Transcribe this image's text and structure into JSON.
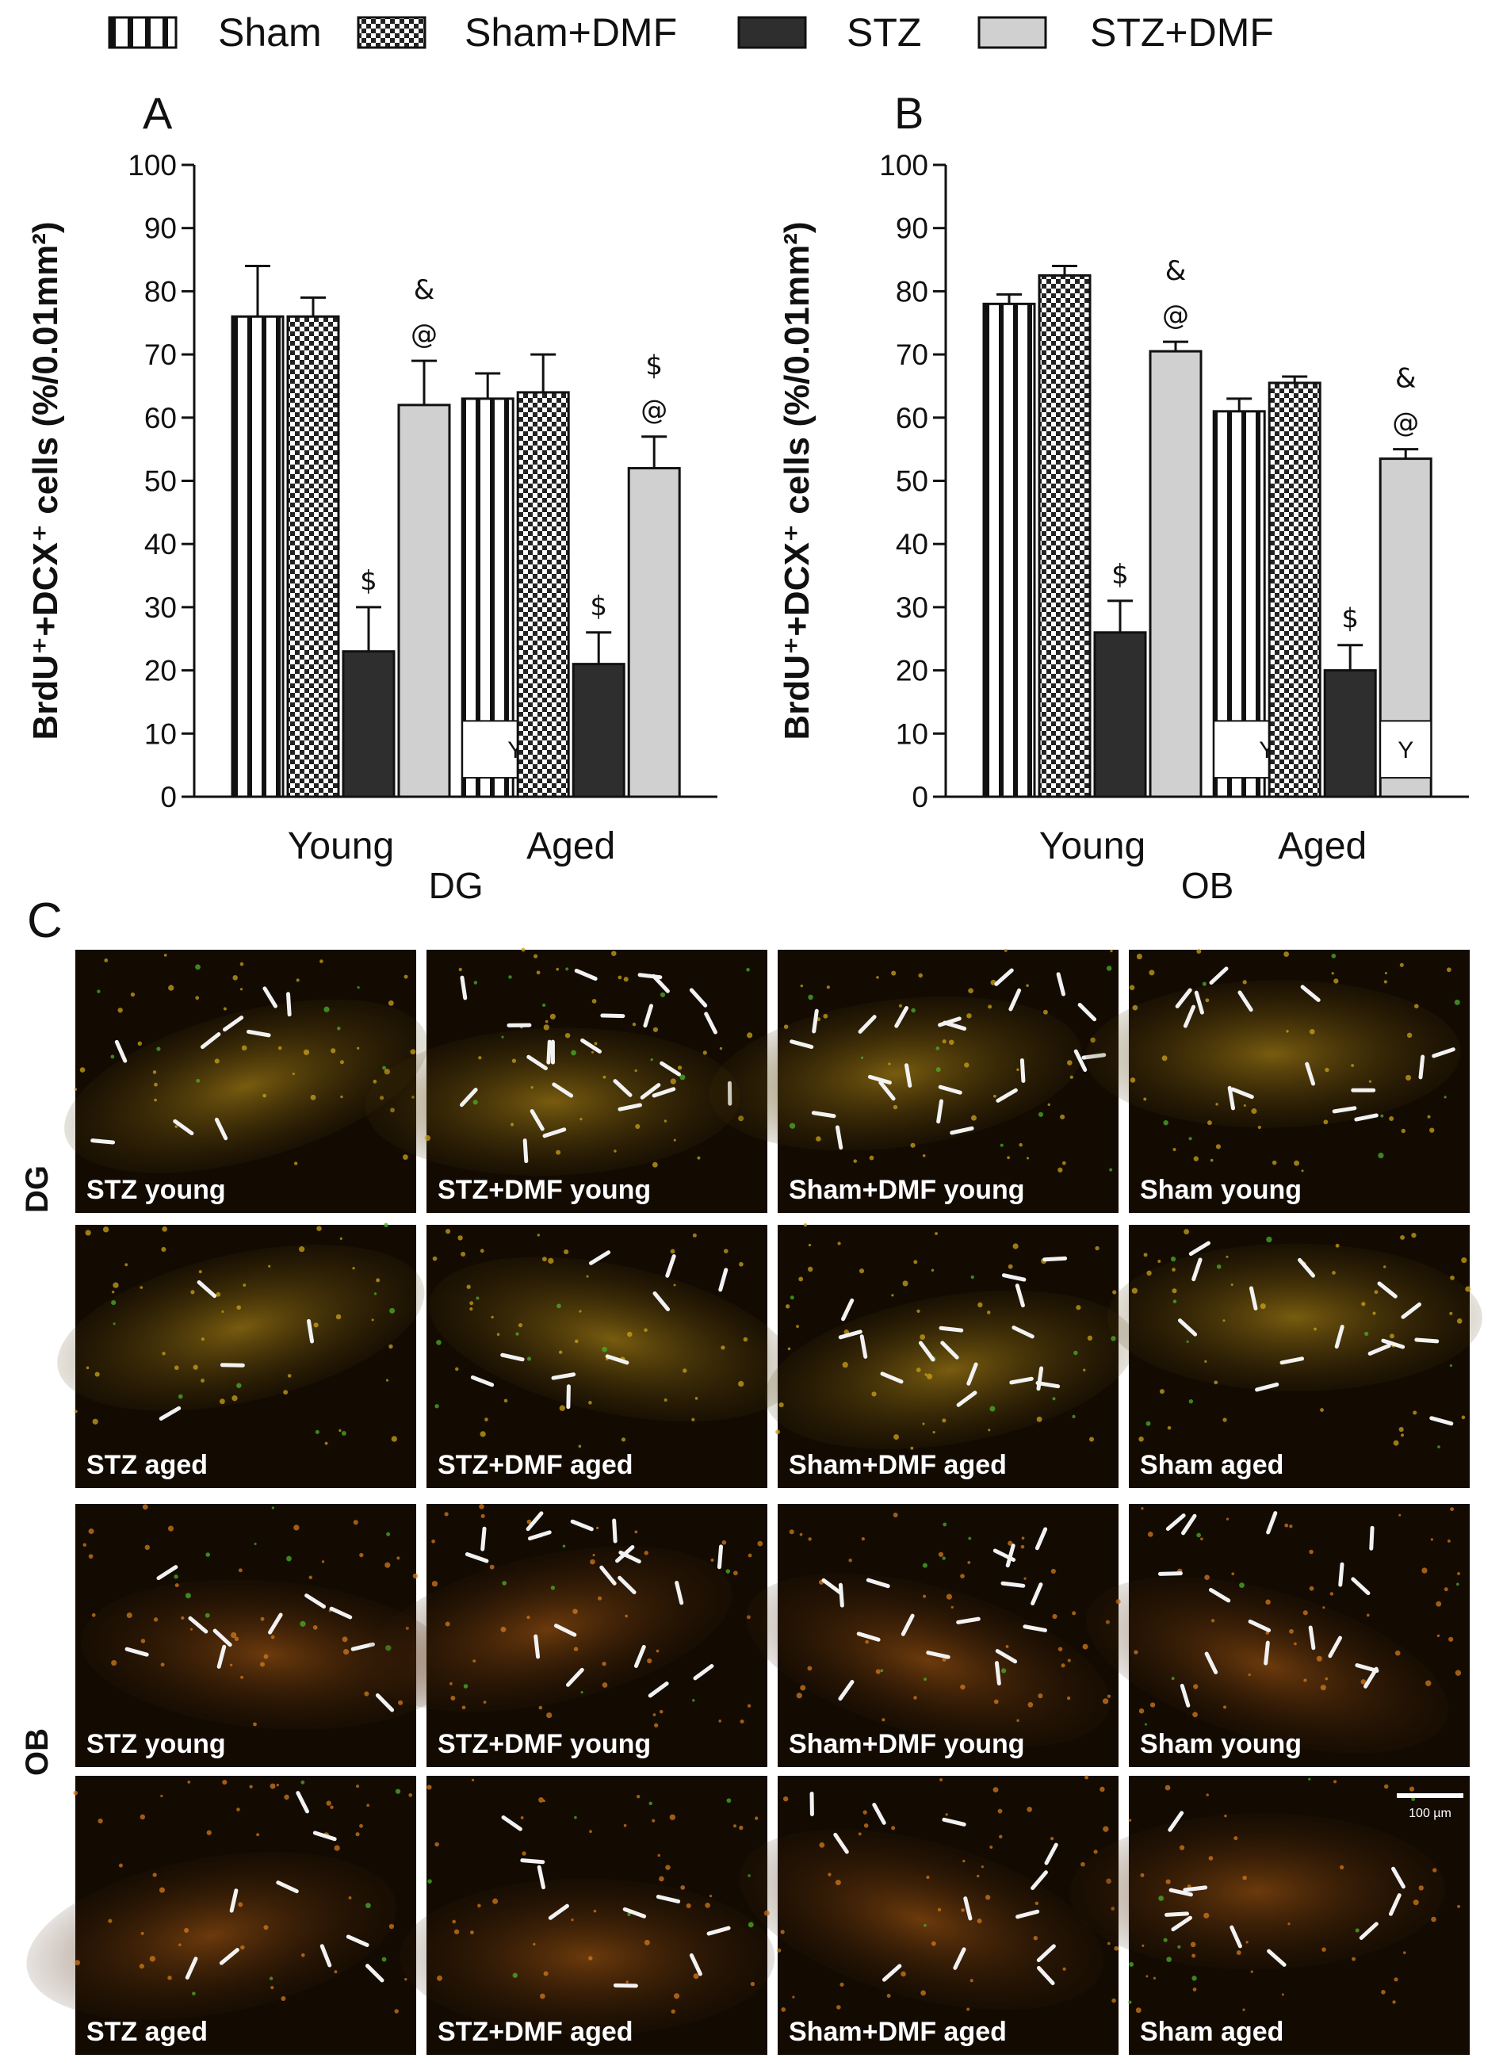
{
  "legend": [
    {
      "label": "Sham",
      "pattern": "vstripe"
    },
    {
      "label": "Sham+DMF",
      "pattern": "check"
    },
    {
      "label": "STZ",
      "pattern": "dark"
    },
    {
      "label": "STZ+DMF",
      "pattern": "light"
    }
  ],
  "colors": {
    "stz": "#2e2e2e",
    "stz_dmf": "#d0d0d0",
    "sham_stripe": "#111111",
    "check": "#222222",
    "micrograph_bg": "#130b02",
    "arrow": "#f2f2f2"
  },
  "chart_data": [
    {
      "type": "bar",
      "panel": "A",
      "title": "",
      "ylabel": "BrdU⁺+DCX⁺ cells (%/0.01mm²)",
      "xlabel": "DG",
      "ylim": [
        0,
        100
      ],
      "yticks": [
        0,
        10,
        20,
        30,
        40,
        50,
        60,
        70,
        80,
        90,
        100
      ],
      "categories": [
        "Young",
        "Aged"
      ],
      "series": [
        {
          "name": "Sham",
          "values": [
            76,
            63
          ],
          "errors": [
            8,
            4
          ],
          "annotations": [
            "",
            ""
          ],
          "inset_labels": [
            "",
            "Y"
          ]
        },
        {
          "name": "Sham+DMF",
          "values": [
            76,
            64
          ],
          "errors": [
            3,
            6
          ],
          "annotations": [
            "",
            ""
          ],
          "inset_labels": [
            "",
            ""
          ]
        },
        {
          "name": "STZ",
          "values": [
            23,
            21
          ],
          "errors": [
            7,
            5
          ],
          "annotations": [
            "$",
            "$"
          ],
          "inset_labels": [
            "",
            ""
          ]
        },
        {
          "name": "STZ+DMF",
          "values": [
            62,
            52
          ],
          "errors": [
            7,
            5
          ],
          "annotations": [
            "& @",
            "$ @"
          ],
          "inset_labels": [
            "",
            ""
          ]
        }
      ]
    },
    {
      "type": "bar",
      "panel": "B",
      "title": "",
      "ylabel": "BrdU⁺+DCX⁺ cells (%/0.01mm²)",
      "xlabel": "OB",
      "ylim": [
        0,
        100
      ],
      "yticks": [
        0,
        10,
        20,
        30,
        40,
        50,
        60,
        70,
        80,
        90,
        100
      ],
      "categories": [
        "Young",
        "Aged"
      ],
      "series": [
        {
          "name": "Sham",
          "values": [
            78,
            61
          ],
          "errors": [
            1.5,
            2
          ],
          "annotations": [
            "",
            ""
          ],
          "inset_labels": [
            "",
            "Y"
          ]
        },
        {
          "name": "Sham+DMF",
          "values": [
            82.5,
            65.5
          ],
          "errors": [
            1.5,
            1
          ],
          "annotations": [
            "",
            ""
          ],
          "inset_labels": [
            "",
            ""
          ]
        },
        {
          "name": "STZ",
          "values": [
            26,
            20
          ],
          "errors": [
            5,
            4
          ],
          "annotations": [
            "$",
            "$"
          ],
          "inset_labels": [
            "",
            ""
          ]
        },
        {
          "name": "STZ+DMF",
          "values": [
            70.5,
            53.5
          ],
          "errors": [
            1.5,
            1.5
          ],
          "annotations": [
            "& @",
            "& @"
          ],
          "inset_labels": [
            "",
            "Y"
          ]
        }
      ]
    }
  ],
  "panel_c": {
    "label": "C",
    "row_labels": [
      "DG",
      "OB"
    ],
    "scale_bar": "100 µm",
    "rows": [
      [
        {
          "label": "STZ young",
          "arrows": 9
        },
        {
          "label": "STZ+DMF young",
          "arrows": 24
        },
        {
          "label": "Sham+DMF young",
          "arrows": 22
        },
        {
          "label": "Sham young",
          "arrows": 14
        }
      ],
      [
        {
          "label": "STZ aged",
          "arrows": 4
        },
        {
          "label": "STZ+DMF aged",
          "arrows": 9
        },
        {
          "label": "Sham+DMF aged",
          "arrows": 16
        },
        {
          "label": "Sham aged",
          "arrows": 14
        }
      ],
      [
        {
          "label": "STZ young",
          "arrows": 10
        },
        {
          "label": "STZ+DMF young",
          "arrows": 18
        },
        {
          "label": "Sham+DMF young",
          "arrows": 16
        },
        {
          "label": "Sham young",
          "arrows": 16
        }
      ],
      [
        {
          "label": "STZ aged",
          "arrows": 9
        },
        {
          "label": "STZ+DMF aged",
          "arrows": 9
        },
        {
          "label": "Sham+DMF  aged",
          "arrows": 12
        },
        {
          "label": "Sham aged",
          "arrows": 10
        }
      ]
    ]
  }
}
